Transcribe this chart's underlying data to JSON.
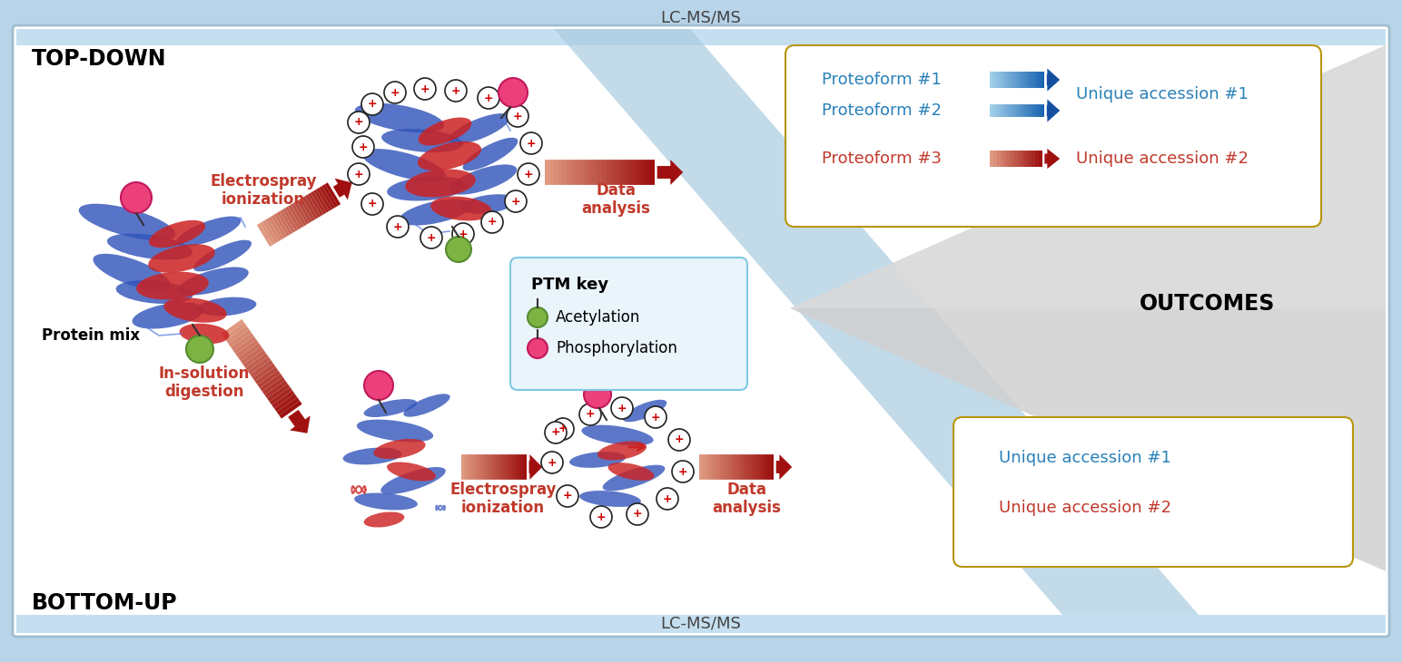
{
  "fig_bg": "#b8d4e8",
  "main_bg": "#ffffff",
  "light_blue_band": "#c5dff0",
  "diag_blue": "#b8d4e8",
  "top_label": "LC-MS/MS",
  "bottom_label": "LC-MS/MS",
  "top_down_label": "TOP-DOWN",
  "bottom_up_label": "BOTTOM-UP",
  "outcomes_label": "OUTCOMES",
  "electrospray_top": "Electrospray\nionization",
  "electrospray_bottom": "Electrospray\nionization",
  "insolution_label": "In-solution\ndigestion",
  "data_analysis_top": "Data\nanalysis",
  "data_analysis_bottom": "Data\nanalysis",
  "protein_mix_label": "Protein mix",
  "ptm_key_title": "PTM key",
  "acetylation_label": "Acetylation",
  "phosphorylation_label": "Phosphorylation",
  "proteoform1": "Proteoform #1",
  "proteoform2": "Proteoform #2",
  "proteoform3": "Proteoform #3",
  "unique_acc1_top": "Unique accession #1",
  "unique_acc2_top": "Unique accession #2",
  "unique_acc1_bottom": "Unique accession #1",
  "unique_acc2_bottom": "Unique accession #2",
  "blue_color": "#2980B9",
  "red_color": "#C0392B",
  "green_circle": "#7CB342",
  "green_border": "#558B2F",
  "pink_circle": "#EC407A",
  "pink_border": "#C2185B",
  "tan_border": "#B8960C",
  "ptm_box_border": "#7EC8E3",
  "ptm_box_bg": "#EAF4FB",
  "gray_tri": "#CCCCCC",
  "electrospray_color": "#C0392B",
  "lw_main": 1.5
}
